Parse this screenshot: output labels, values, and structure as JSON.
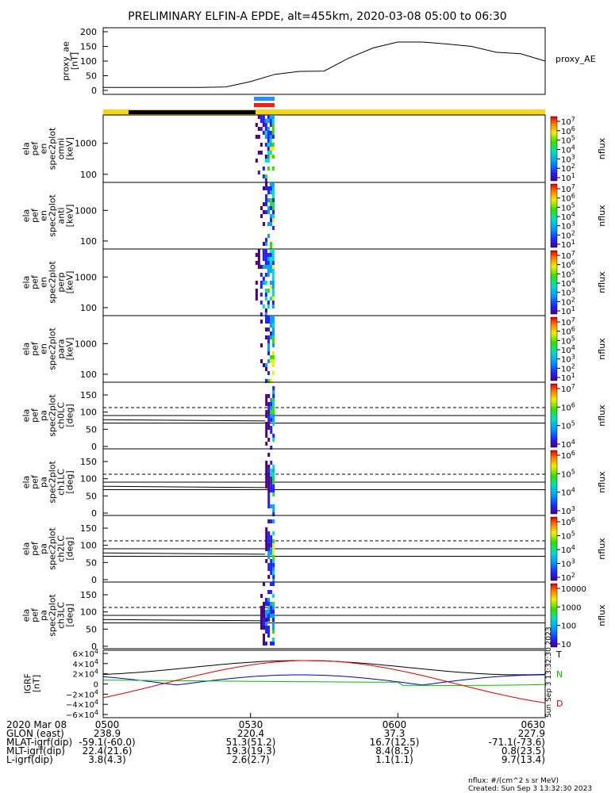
{
  "title": "PRELIMINARY ELFIN-A EPDE, alt=455km, 2020-03-08 05:00 to 06:30",
  "chart_data": [
    {
      "type": "line",
      "name": "proxy_ae_panel",
      "ylabel": [
        "proxy_ae",
        "[nT]"
      ],
      "legend": "proxy_AE",
      "ylim": [
        0,
        200
      ],
      "yticks": [
        "200",
        "150",
        "100",
        "50",
        "0"
      ],
      "x": [
        "05:00",
        "05:10",
        "05:20",
        "05:25",
        "05:30",
        "05:35",
        "05:40",
        "05:45",
        "05:50",
        "05:55",
        "06:00",
        "06:05",
        "06:10",
        "06:15",
        "06:20",
        "06:25",
        "06:30"
      ],
      "values": [
        10,
        10,
        10,
        12,
        30,
        55,
        65,
        66,
        110,
        145,
        165,
        165,
        158,
        150,
        130,
        125,
        100
      ]
    },
    {
      "type": "heatmap",
      "name": "omni",
      "ylabel": [
        "ela",
        "pef",
        "en",
        "spec2plot",
        "omni",
        "[keV]"
      ],
      "yticks": [
        "1000",
        "100"
      ],
      "colorbar": {
        "label": "nflux",
        "ticks": [
          "10^7",
          "10^6",
          "10^5",
          "10^4",
          "10^3",
          "10^2",
          "10^1"
        ]
      },
      "data_window": [
        "05:31",
        "05:35"
      ]
    },
    {
      "type": "heatmap",
      "name": "anti",
      "ylabel": [
        "ela",
        "pef",
        "en",
        "spec2plot",
        "anti",
        "[keV]"
      ],
      "yticks": [
        "1000",
        "100"
      ],
      "colorbar": {
        "label": "nflux",
        "ticks": [
          "10^7",
          "10^6",
          "10^5",
          "10^4",
          "10^3",
          "10^2",
          "10^1"
        ]
      },
      "data_window": [
        "05:32",
        "05:35"
      ]
    },
    {
      "type": "heatmap",
      "name": "perp",
      "ylabel": [
        "ela",
        "pef",
        "en",
        "spec2plot",
        "perp",
        "[keV]"
      ],
      "yticks": [
        "1000",
        "100"
      ],
      "colorbar": {
        "label": "nflux",
        "ticks": [
          "10^7",
          "10^6",
          "10^5",
          "10^4",
          "10^3",
          "10^2",
          "10^1"
        ]
      },
      "data_window": [
        "05:31",
        "05:35"
      ]
    },
    {
      "type": "heatmap",
      "name": "para",
      "ylabel": [
        "ela",
        "pef",
        "en",
        "spec2plot",
        "para",
        "[keV]"
      ],
      "yticks": [
        "1000",
        "100"
      ],
      "colorbar": {
        "label": "nflux",
        "ticks": [
          "10^7",
          "10^6",
          "10^5",
          "10^4",
          "10^3",
          "10^2",
          "10^1"
        ]
      },
      "data_window": [
        "05:32",
        "05:35"
      ]
    },
    {
      "type": "heatmap",
      "name": "ch0LC",
      "ylabel": [
        "ela",
        "pef",
        "pa",
        "spec2plot",
        "ch0LC",
        "[deg]"
      ],
      "yticks": [
        "150",
        "100",
        "50",
        "0"
      ],
      "colorbar": {
        "label": "nflux",
        "ticks": [
          "10^7",
          "10^6",
          "10^5",
          "10^4"
        ]
      },
      "data_window": [
        "05:33",
        "05:35"
      ]
    },
    {
      "type": "heatmap",
      "name": "ch1LC",
      "ylabel": [
        "ela",
        "pef",
        "pa",
        "spec2plot",
        "ch1LC",
        "[deg]"
      ],
      "yticks": [
        "150",
        "100",
        "50",
        "0"
      ],
      "colorbar": {
        "label": "nflux",
        "ticks": [
          "10^6",
          "10^5",
          "10^4",
          "10^3"
        ]
      },
      "data_window": [
        "05:33",
        "05:35"
      ]
    },
    {
      "type": "heatmap",
      "name": "ch2LC",
      "ylabel": [
        "ela",
        "pef",
        "pa",
        "spec2plot",
        "ch2LC",
        "[deg]"
      ],
      "yticks": [
        "150",
        "100",
        "50",
        "0"
      ],
      "colorbar": {
        "label": "nflux",
        "ticks": [
          "10^6",
          "10^5",
          "10^4",
          "10^3",
          "10^2"
        ]
      },
      "data_window": [
        "05:33",
        "05:35"
      ]
    },
    {
      "type": "heatmap",
      "name": "ch3LC",
      "ylabel": [
        "ela",
        "pef",
        "pa",
        "spec2plot",
        "ch3LC",
        "[deg]"
      ],
      "yticks": [
        "150",
        "100",
        "50",
        "0"
      ],
      "colorbar": {
        "label": "nflux",
        "ticks": [
          "10000",
          "1000",
          "100",
          "10"
        ]
      },
      "data_window": [
        "05:32",
        "05:35"
      ]
    },
    {
      "type": "line",
      "name": "igrf_panel",
      "ylabel": [
        "IGRF",
        "[nT]"
      ],
      "yticks": [
        "6×10^4",
        "4×10^4",
        "2×10^4",
        "0",
        "−2×10^4",
        "−4×10^4",
        "−6×10^4"
      ],
      "ylim": [
        -60000,
        60000
      ],
      "legend": [
        "T",
        "N",
        "D"
      ],
      "colors": {
        "T": "#000000",
        "N": "#00c000",
        "E": "#0000c0",
        "D": "#e00000"
      },
      "side_text": [
        "Sun Sep  3 13:32:30 2023",
        "Sun Sep  3 13:32:30 2023"
      ]
    }
  ],
  "footer": {
    "rows": [
      {
        "label": "2020 Mar 08",
        "values": [
          "0500",
          "0530",
          "0600",
          "0630"
        ]
      },
      {
        "label": "GLON (east)",
        "values": [
          "238.9",
          "220.4",
          "37.3",
          "227.9"
        ]
      },
      {
        "label": "MLAT-igrf(dip)",
        "values": [
          "-59.1(-60.0)",
          "51.3(51.2)",
          "16.7(12.5)",
          "-71.1(-73.6)"
        ]
      },
      {
        "label": "MLT-igrf(dip)",
        "values": [
          "22.4(21.6)",
          "19.3(19.3)",
          "8.4(8.5)",
          "0.8(23.5)"
        ]
      },
      {
        "label": "L-igrf(dip)",
        "values": [
          "3.8(4.3)",
          "2.6(2.7)",
          "1.1(1.1)",
          "9.7(13.4)"
        ]
      }
    ],
    "units": "nflux: #/(cm^2 s sr MeV)",
    "created": "Created: Sun Sep  3 13:32:30 2023"
  },
  "colors": {
    "yellow_bar": "#f7d61a",
    "black_bar": "#000000",
    "blue_bar": "#1e90ff",
    "red_bar": "#ff1a1a"
  }
}
